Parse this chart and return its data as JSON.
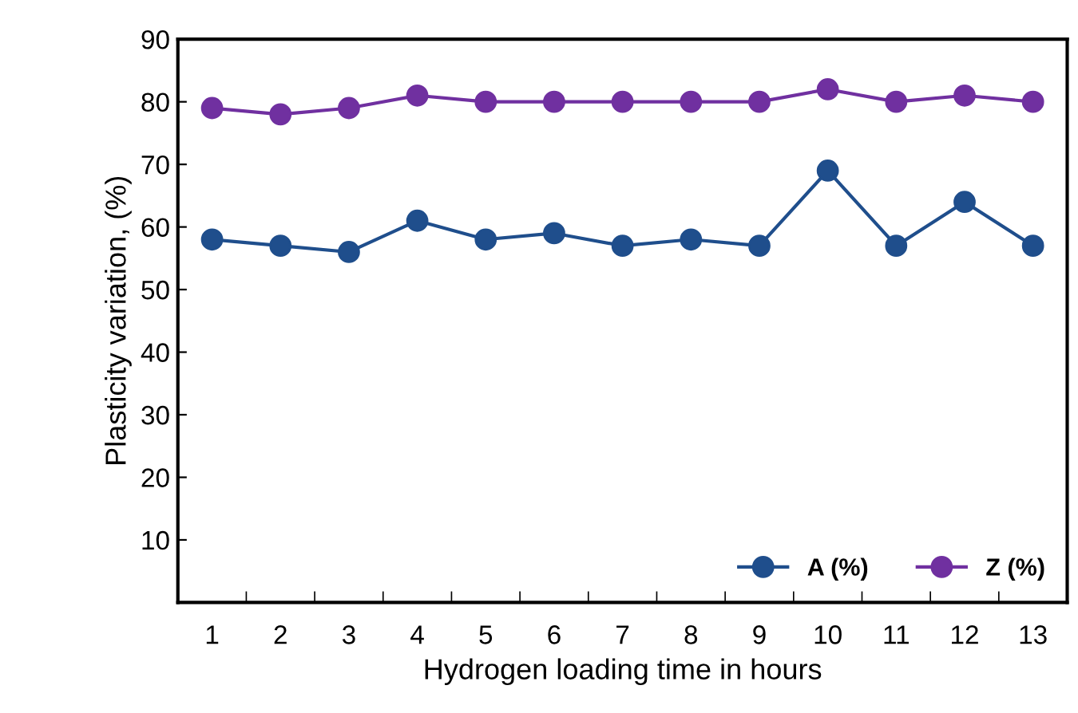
{
  "chart_data": {
    "type": "line",
    "xlabel": "Hydrogen loading time in hours",
    "ylabel": "Plasticity variation, (%)",
    "categories": [
      "1",
      "2",
      "3",
      "4",
      "5",
      "6",
      "7",
      "8",
      "9",
      "10",
      "11",
      "12",
      "13"
    ],
    "series": [
      {
        "name": "A (%)",
        "color": "#1f4e8c",
        "values": [
          58,
          57,
          56,
          61,
          58,
          59,
          57,
          58,
          57,
          69,
          57,
          64,
          57
        ]
      },
      {
        "name": "Z (%)",
        "color": "#7030a0",
        "values": [
          79,
          78,
          79,
          81,
          80,
          80,
          80,
          80,
          80,
          82,
          80,
          81,
          80
        ]
      }
    ],
    "ylim": [
      0,
      90
    ],
    "yticks": [
      {
        "value": 0,
        "label": null
      },
      10,
      20,
      30,
      40,
      50,
      60,
      70,
      80,
      90
    ],
    "grid": false,
    "legend": "bottom right",
    "marker": "circle",
    "line_style": "solid"
  }
}
